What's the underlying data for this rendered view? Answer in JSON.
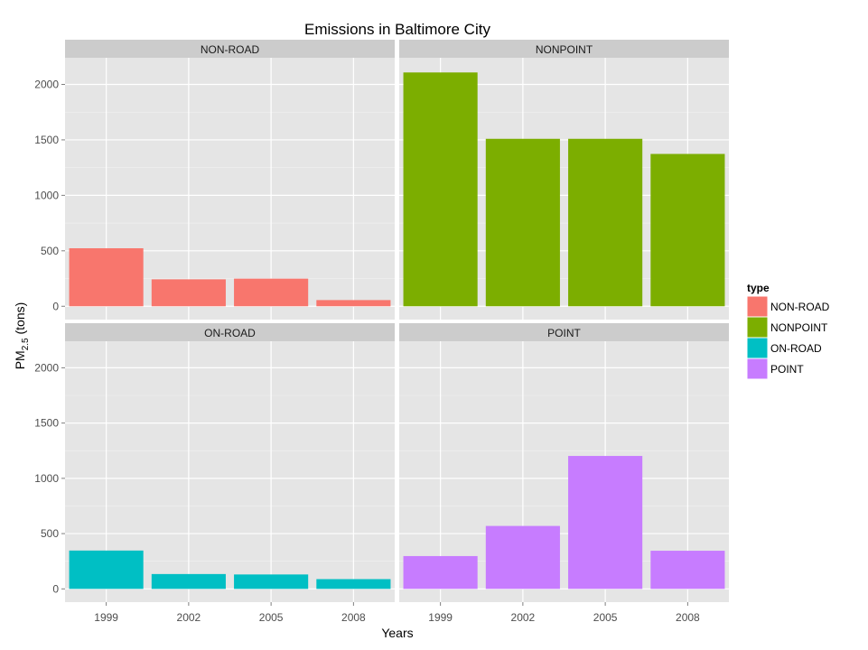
{
  "chart_data": {
    "type": "bar",
    "title": "Emissions in Baltimore City",
    "xlabel": "Years",
    "ylabel": "PM",
    "ylabel_sub": "2.5",
    "ylabel_suffix": " (tons)",
    "categories": [
      "1999",
      "2002",
      "2005",
      "2008"
    ],
    "ylim": [
      -120,
      2240
    ],
    "yticks": [
      0,
      500,
      1000,
      1500,
      2000
    ],
    "grid": true,
    "legend": {
      "title": "type",
      "position": "right",
      "entries": [
        "NON-ROAD",
        "NONPOINT",
        "ON-ROAD",
        "POINT"
      ]
    },
    "panels": [
      {
        "name": "NON-ROAD",
        "color": "#F8766D",
        "values": [
          522.94,
          242.88,
          248.93,
          55.82
        ]
      },
      {
        "name": "NONPOINT",
        "color": "#7CAE00",
        "values": [
          2107.63,
          1509.5,
          1509.5,
          1373.21
        ]
      },
      {
        "name": "ON-ROAD",
        "color": "#00BFC4",
        "values": [
          346.82,
          134.31,
          130.43,
          88.28
        ]
      },
      {
        "name": "POINT",
        "color": "#C77CFF",
        "values": [
          296.8,
          569.26,
          1202.49,
          344.98
        ]
      }
    ]
  }
}
